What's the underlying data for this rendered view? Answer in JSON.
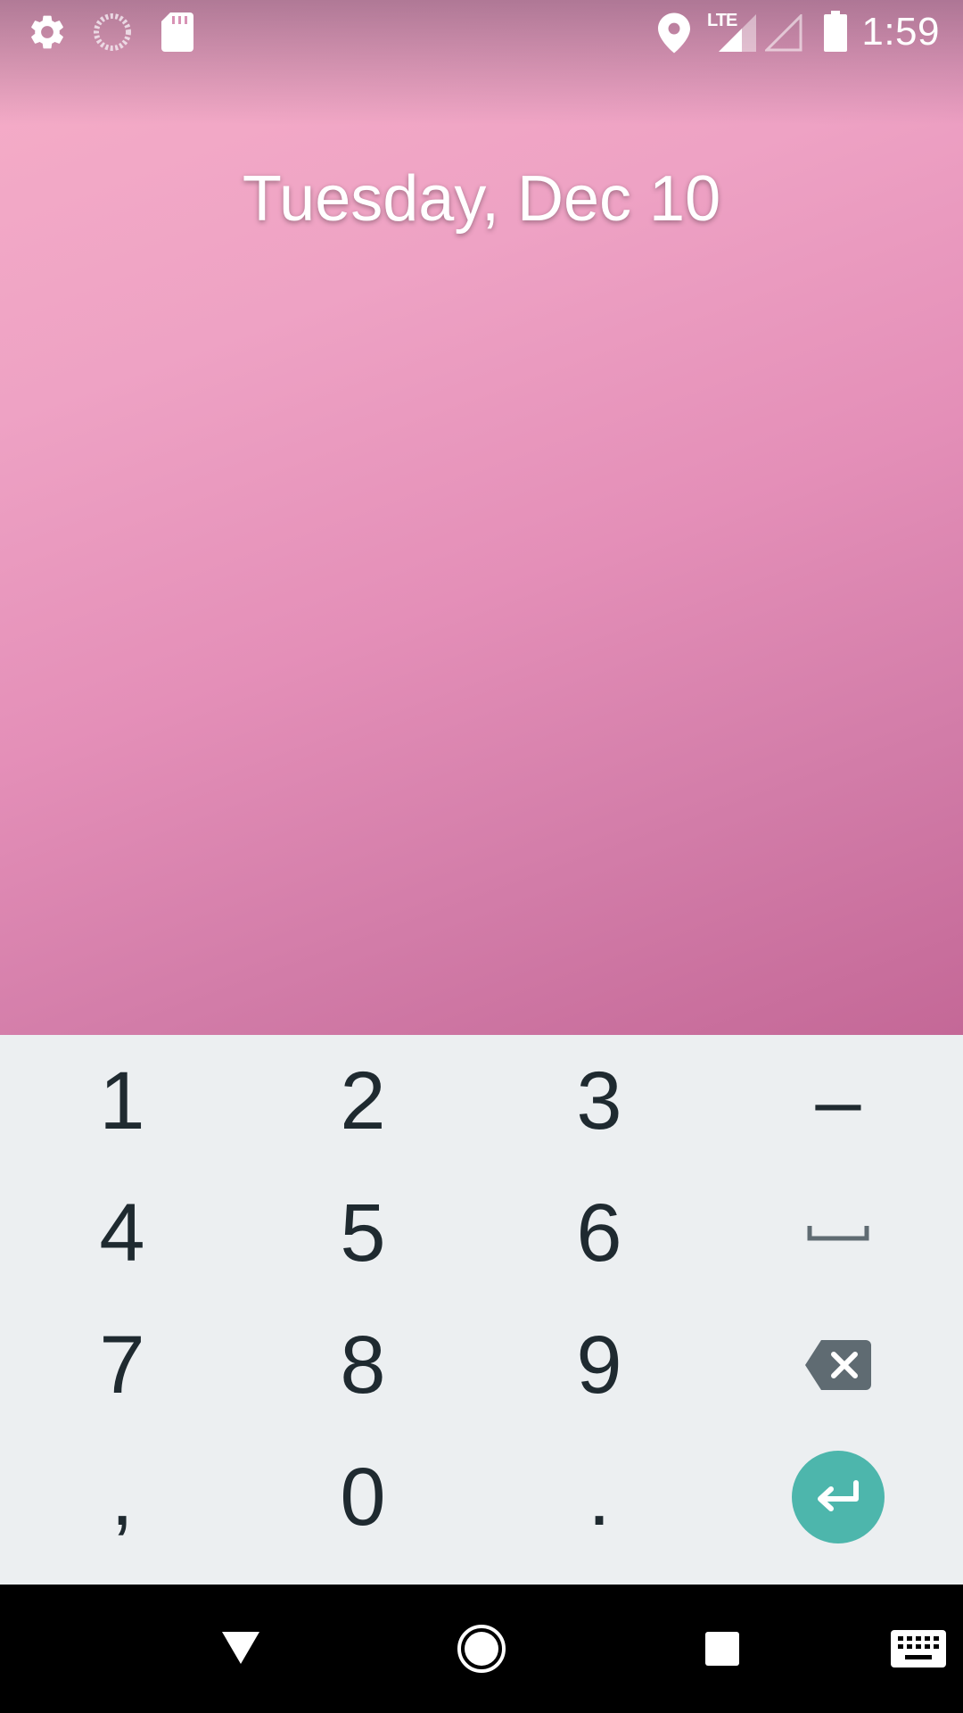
{
  "status_bar": {
    "time": "1:59",
    "network_label": "LTE",
    "icons": [
      "settings-icon",
      "loading-spinner-icon",
      "sd-card-icon",
      "location-icon",
      "signal-icon",
      "signal-empty-icon",
      "battery-icon"
    ]
  },
  "lock_screen": {
    "date": "Tuesday, Dec 10"
  },
  "numpad": {
    "keys": {
      "k1": "1",
      "k2": "2",
      "k3": "3",
      "minus": "–",
      "k4": "4",
      "k5": "5",
      "k6": "6",
      "k7": "7",
      "k8": "8",
      "k9": "9",
      "comma": ",",
      "k0": "0",
      "period": "."
    },
    "icons": [
      "space-icon",
      "backspace-icon",
      "enter-icon"
    ],
    "accent_color": "#4db6ac"
  },
  "nav_bar": {
    "icons": [
      "back-icon",
      "home-icon",
      "recents-icon",
      "keyboard-icon"
    ]
  }
}
